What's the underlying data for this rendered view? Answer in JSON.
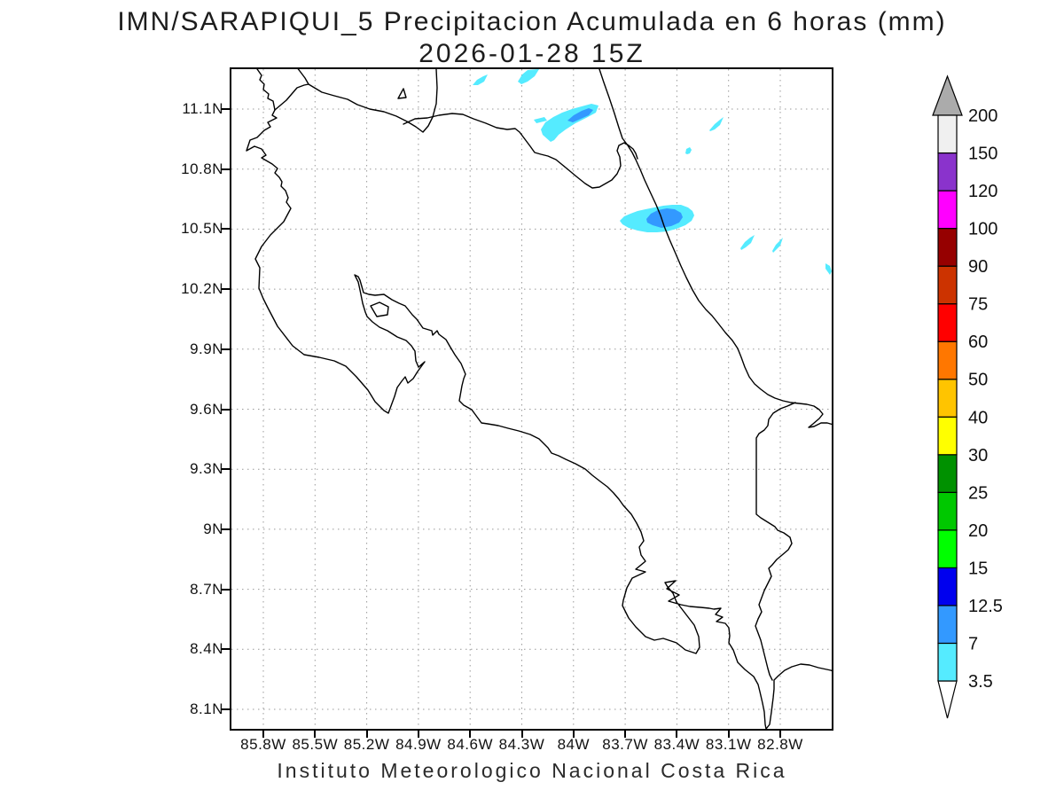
{
  "title": {
    "line1": "IMN/SARAPIQUI_5 Precipitacion Acumulada en 6 horas (mm)",
    "line2": "2026-01-28 15Z"
  },
  "footer": "Instituto Meteorologico Nacional Costa Rica",
  "axes": {
    "lat_labels": [
      "11.1N",
      "10.8N",
      "10.5N",
      "10.2N",
      "9.9N",
      "9.6N",
      "9.3N",
      "9N",
      "8.7N",
      "8.4N",
      "8.1N"
    ],
    "lon_labels": [
      "85.8W",
      "85.5W",
      "85.2W",
      "84.9W",
      "84.6W",
      "84.3W",
      "84W",
      "83.7W",
      "83.4W",
      "83.1W",
      "82.8W"
    ]
  },
  "colorbar": {
    "levels": [
      "3.5",
      "7",
      "12.5",
      "15",
      "20",
      "25",
      "30",
      "40",
      "50",
      "60",
      "75",
      "90",
      "100",
      "120",
      "150",
      "200"
    ],
    "colors": [
      "#55EBFF",
      "#3399FF",
      "#0000EE",
      "#00FF00",
      "#00C800",
      "#009100",
      "#FFFF00",
      "#FFC400",
      "#FF7700",
      "#FF0000",
      "#CC3300",
      "#960000",
      "#FF00FF",
      "#8A33CC",
      "#F0F0F0"
    ],
    "over_color": "#ABABAB",
    "under_color": "#FFFFFF"
  },
  "map": {
    "coast_color": "#000000",
    "grid_color": "#999999",
    "coast_paths": [
      "M27,-3 L34,7 L32,12 L37,17 L36,23 L42,28 L41,33 L47,36 L49,46 L46,52 L51,55 L41,60 L44,65 L37,69 L29,77 L21,80 L17,92 L26,87 L34,90 L39,97 L34,100 L46,107 L52,112 L49,117 L54,122 L57,127 L56,132 L61,137 L64,145 L62,150 L67,157 L59,172 L44,187 L34,200 L27,214 L32,224 L31,247 L36,259 L41,269 L52,290 L69,312 L82,322 L99,325 L116,329 L129,335 L141,347 L154,362 L162,375 L172,385 L177,388 L184,369 L187,359 L192,352 L196,347 L199,354 L205,349 L210,341 L218,330 L211,336 L208,329 L207,318 L203,312 L197,306 L187,302 L176,295 L167,291 L159,285 L153,279 L151,274 L148,264 L145,249 L143,240 L139,232 L143,234 L145,238 L149,252 L155,254 L162,255 L172,254 L181,260 L189,264 L196,267 L204,277 L209,282 L216,292 L226,295 L227,300 L232,295 L234,299 L242,305 L246,312 L252,322 L259,332 L264,344 L262,349 L260,357 L257,374 L262,379 L271,384 L282,399 L289,400 L301,402 L312,405 L324,408 L337,412 L347,417 L357,427 L361,433 L369,436 L377,440 L388,445 L399,451 L407,458 L416,465 L424,471 L431,478 L437,485 L442,492 L451,502 L457,512 L462,522 L465,532 L460,539 L462,548 L467,555 L456,564 L467,567 L452,574 L446,585 L442,599 L441,605 L448,619 L456,629 L467,640 L477,644 L487,642 L502,647 L512,655 L524,659 L528,652 L527,640 L522,627 L512,614 L502,601 L498,591 L492,584 L489,579 L501,577 L491,586 L505,593 L493,600 L507,604 L517,606 L529,607 L539,608 L544,609 L552,608 L546,615 L554,618 L547,623 L557,625 L561,630 L562,639 L561,647 L566,655 L571,669 L579,677 L589,685 L594,694 L596,702 L599,715 L601,725 L602,739 L603,744 L607,739 L609,725 L611,709 L612,699 L612,689 L617,684 L624,678 L632,674 L642,671 L652,672 L662,675 L676,678 L679,679",
      "M415,0 L420,15 L426,32 L432,50 L437,66 L441,78 L447,86 L452,94 L456,102 L461,113 L466,125 L472,138 L479,153 L484,165 L488,177 L494,192 L501,208 L507,222 L513,235 L520,249 L527,261 L535,271 L542,278 L550,288 L557,297 L565,306 L571,315 L575,325 L579,336 L584,347 L590,355 L597,361 L605,367 L613,371 L622,374 L631,376 L640,377 L649,378 L657,380 L663,384 L667,389 L663,394 L656,400 L651,404 L657,403 L665,399 L672,399 L679,401",
      "M194,62 L207,56 L221,55 L234,52 L249,50 L261,51 L273,56 L287,61 L299,66 L311,68 L320,67 L325,71 L331,79 L337,87 L342,94 L349,96 L357,98 L366,102 L377,111 L389,121 L399,129 L407,134 L415,133 L422,129 L429,125 L435,118 L439,109 L438,99 L435,92 L437,86 L443,83 L448,86 L453,90 L456,95 L458,101",
      "M636,376 L627,380 L619,383 L611,388 L606,395 L605,402 L601,407 L595,411 L592,416 L592,502 L597,506 L605,511 L613,516 L616,520 L623,523 L630,528 L632,535 L628,542 L621,548 L615,553 L610,559 L606,563 L609,572 L605,580 L601,588 L598,596 L595,604 L598,612 L594,620 L591,628 L594,636 L597,644 L599,652 L601,660 L603,668 L605,676 L607,683 L610,689",
      "M49,46 L62,35 L74,21 L82,18 L87,17 L83,10 L77,2 L73,-3",
      "M87,17 L102,26 L116,30 L131,34 L142,40 L156,45 L172,48 L186,53 L198,59 L208,65 L216,71 L222,64 L227,54 L231,39 L232,21 L231,0",
      "M188,33 L194,22 L197,32 Z",
      "M157,267 L167,263 L177,268 L176,277 L164,279 Z"
    ],
    "precip": {
      "light": [
        "M360,82 L351,74 L349,68 L354,60 L363,54 L373,49 L384,45 L395,42 L406,39 L414,41 L411,49 L400,55 L388,61 L377,68 L369,74 L364,80 Z",
        "M341,57 L353,54 L356,58 L344,61 Z",
        "M323,14 L328,6 L334,1 L347,0 L342,8 L334,14 L327,17 Z",
        "M272,18 L277,12 L284,8 L289,6 L285,14 L278,18 Z",
        "M539,69 L545,62 L551,57 L555,54 L551,63 L545,68 L540,70 Z",
        "M512,95 L513,90 L517,88 L519,91 L517,95 L514,96 Z",
        "M438,171 L443,166 L450,163 L458,160 L467,158 L477,156 L487,154 L497,153 L507,153 L515,156 L520,160 L522,165 L519,171 L512,176 L502,180 L491,183 L480,184 L469,184 L458,182 L448,179 L441,175 Z",
        "M574,202 L579,195 L585,190 L590,187 L586,196 L580,201 L575,204 Z",
        "M610,205 L614,198 L619,193 L622,190 L619,199 L614,204 L611,207 Z",
        "M670,219 L675,222 L677,228 L675,232 L670,225 Z"
      ],
      "moderate": [
        "M379,58 L386,52 L395,47 L403,44 L408,46 L403,52 L394,56 L385,60 Z",
        "M468,169 L473,163 L481,159 L491,157 L500,158 L507,162 L509,167 L505,173 L496,177 L485,179 L475,176 L469,173 Z"
      ]
    }
  },
  "chart_data": {
    "type": "heatmap",
    "title": "IMN/SARAPIQUI_5 Precipitacion Acumulada en 6 horas (mm)",
    "subtitle": "2026-01-28 15Z",
    "caption": "Instituto Meteorologico Nacional Costa Rica",
    "units": "mm",
    "x_ticks_lon": [
      85.8,
      85.5,
      85.2,
      84.9,
      84.6,
      84.3,
      84.0,
      83.7,
      83.4,
      83.1,
      82.8
    ],
    "y_ticks_lat": [
      8.1,
      8.4,
      8.7,
      9.0,
      9.3,
      9.6,
      9.9,
      10.2,
      10.5,
      10.8,
      11.1
    ],
    "lon_range_w": [
      86.0,
      82.5
    ],
    "lat_range_n": [
      8.0,
      11.3
    ],
    "grid": "dotted",
    "legend_position": "right",
    "levels": [
      3.5,
      7,
      12.5,
      15,
      20,
      25,
      30,
      40,
      50,
      60,
      75,
      90,
      100,
      120,
      150,
      200
    ],
    "palette": [
      "#55EBFF",
      "#3399FF",
      "#0000EE",
      "#00FF00",
      "#00C800",
      "#009100",
      "#FFFF00",
      "#FFC400",
      "#FF7700",
      "#FF0000",
      "#CC3300",
      "#960000",
      "#FF00FF",
      "#8A33CC",
      "#F0F0F0"
    ],
    "cells": [
      {
        "lon_w": 84.03,
        "lat_n": 11.03,
        "intensity_mm": "3.5-7"
      },
      {
        "lon_w": 83.97,
        "lat_n": 11.07,
        "intensity_mm": "7-12.5"
      },
      {
        "lon_w": 84.21,
        "lat_n": 11.04,
        "intensity_mm": "3.5-7"
      },
      {
        "lon_w": 84.27,
        "lat_n": 11.27,
        "intensity_mm": "3.5-7"
      },
      {
        "lon_w": 84.55,
        "lat_n": 11.25,
        "intensity_mm": "3.5-7"
      },
      {
        "lon_w": 83.17,
        "lat_n": 11.02,
        "intensity_mm": "3.5-7"
      },
      {
        "lon_w": 83.34,
        "lat_n": 10.89,
        "intensity_mm": "3.5-7"
      },
      {
        "lon_w": 83.52,
        "lat_n": 10.55,
        "intensity_mm": "3.5-7"
      },
      {
        "lon_w": 83.48,
        "lat_n": 10.55,
        "intensity_mm": "7-12.5"
      },
      {
        "lon_w": 82.99,
        "lat_n": 10.43,
        "intensity_mm": "3.5-7"
      },
      {
        "lon_w": 82.81,
        "lat_n": 10.42,
        "intensity_mm": "3.5-7"
      },
      {
        "lon_w": 82.52,
        "lat_n": 10.3,
        "intensity_mm": "3.5-7"
      }
    ]
  }
}
